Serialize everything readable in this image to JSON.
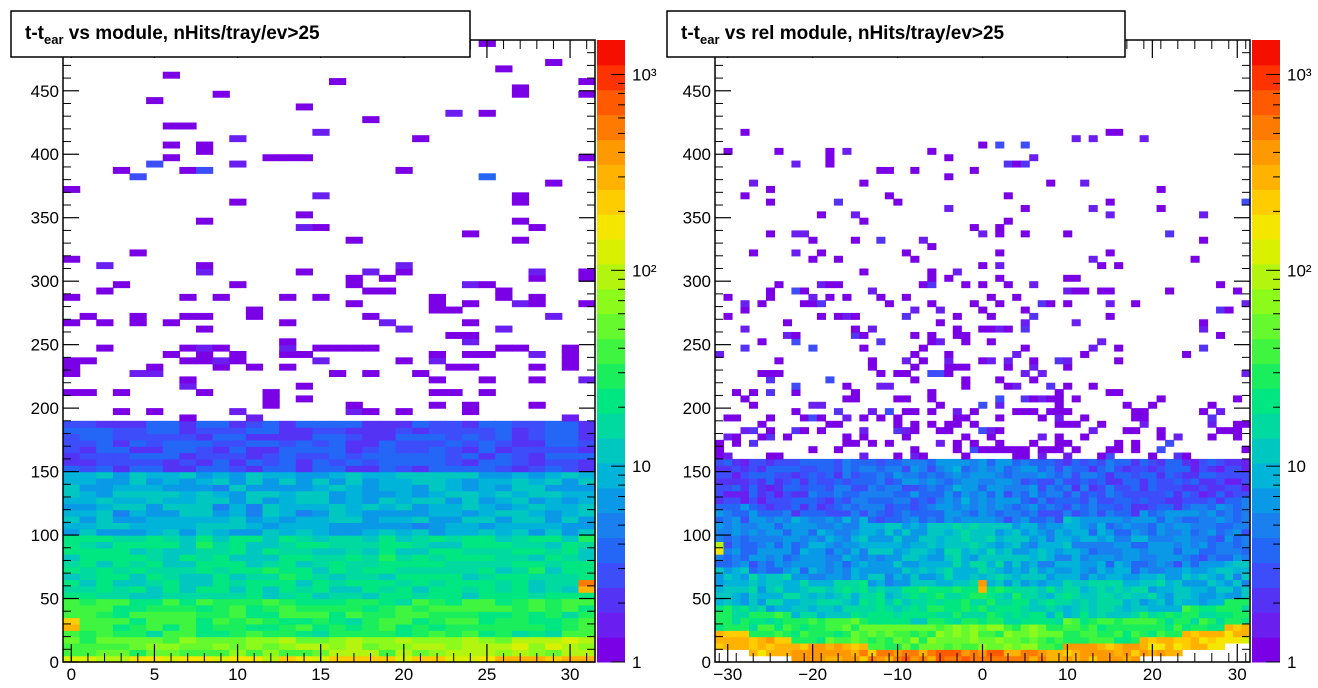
{
  "chart_data": [
    {
      "type": "heatmap",
      "title": {
        "main": "t-t",
        "sub": "ear",
        "rest": " vs module, nHits/tray/ev>25"
      },
      "xlabel": "",
      "ylabel": "",
      "xlim": [
        -0.5,
        31.5
      ],
      "ylim": [
        0,
        490
      ],
      "x_bins": 32,
      "y_bin_width": 5,
      "xticks": [
        0,
        5,
        10,
        15,
        20,
        25,
        30
      ],
      "xtick_labels": [
        "0",
        "5",
        "10",
        "15",
        "20",
        "25",
        "30"
      ],
      "yticks": [
        0,
        50,
        100,
        150,
        200,
        250,
        300,
        350,
        400,
        450
      ],
      "ytick_labels": [
        "0",
        "50",
        "100",
        "150",
        "200",
        "250",
        "300",
        "350",
        "400",
        "450"
      ],
      "zscale": "log",
      "zlim": [
        1,
        1500
      ],
      "ztick_labels": [
        {
          "value": 1,
          "label": "1"
        },
        {
          "value": 10,
          "label": "10"
        },
        {
          "value": 100,
          "label": "10²"
        },
        {
          "value": 1000,
          "label": "10³"
        }
      ],
      "density_profile": {
        "description": "counts per cell vs time (y) band",
        "bands": [
          {
            "y": [
              0,
              5
            ],
            "count": 150
          },
          {
            "y": [
              5,
              20
            ],
            "count": 60
          },
          {
            "y": [
              20,
              50
            ],
            "count": 30
          },
          {
            "y": [
              50,
              100
            ],
            "count": 18
          },
          {
            "y": [
              100,
              150
            ],
            "count": 9
          },
          {
            "y": [
              150,
              190
            ],
            "count": 3
          },
          {
            "y": [
              190,
              250
            ],
            "count": 1
          },
          {
            "y": [
              250,
              490
            ],
            "count": 1
          }
        ],
        "hotspots": [
          {
            "x": 31,
            "y": 60,
            "count": 400
          },
          {
            "x": 0,
            "y": 30,
            "count": 300
          }
        ]
      }
    },
    {
      "type": "heatmap",
      "title": {
        "main": "t-t",
        "sub": "ear",
        "rest": " vs rel module, nHits/tray/ev>25"
      },
      "xlabel": "",
      "ylabel": "",
      "xlim": [
        -31.5,
        31.5
      ],
      "ylim": [
        0,
        490
      ],
      "x_bins": 63,
      "y_bin_width": 5,
      "xticks": [
        -30,
        -20,
        -10,
        0,
        10,
        20,
        30
      ],
      "xtick_labels": [
        "−30",
        "−20",
        "−10",
        "0",
        "10",
        "20",
        "30"
      ],
      "yticks": [
        0,
        50,
        100,
        150,
        200,
        250,
        300,
        350,
        400,
        450
      ],
      "ytick_labels": [
        "0",
        "50",
        "100",
        "150",
        "200",
        "250",
        "300",
        "350",
        "400",
        "450"
      ],
      "zscale": "log",
      "zlim": [
        1,
        1500
      ],
      "ztick_labels": [
        {
          "value": 1,
          "label": "1"
        },
        {
          "value": 10,
          "label": "10"
        },
        {
          "value": 100,
          "label": "10²"
        },
        {
          "value": 1000,
          "label": "10³"
        }
      ],
      "density_profile": {
        "description": "counts concentrated near rel module 0, falling off with |x|; early-time band curves upward away from 0",
        "peak_center_x": -2,
        "bands": [
          {
            "y": [
              0,
              10
            ],
            "count": 500
          },
          {
            "y": [
              10,
              30
            ],
            "count": 50
          },
          {
            "y": [
              30,
              60
            ],
            "count": 20
          },
          {
            "y": [
              60,
              110
            ],
            "count": 10
          },
          {
            "y": [
              110,
              160
            ],
            "count": 5
          },
          {
            "y": [
              160,
              200
            ],
            "count": 2
          },
          {
            "y": [
              200,
              420
            ],
            "count": 1
          }
        ],
        "hotspots": [
          {
            "x": 0,
            "y": 60,
            "count": 300
          },
          {
            "x": -31,
            "y": 90,
            "count": 150
          }
        ]
      }
    }
  ],
  "palette": [
    "#7a00e6",
    "#6a1ff0",
    "#5533f5",
    "#3d4dfa",
    "#2466f5",
    "#1a80f0",
    "#0a99e6",
    "#00b3d9",
    "#00c7c0",
    "#00d9a0",
    "#00e680",
    "#1aee5c",
    "#40f540",
    "#66fa2e",
    "#8cfa1a",
    "#b3f50f",
    "#d9f000",
    "#f5e600",
    "#ffcc00",
    "#ffb300",
    "#ff9900",
    "#ff7a00",
    "#ff5a00",
    "#ff3300",
    "#f50f00"
  ]
}
